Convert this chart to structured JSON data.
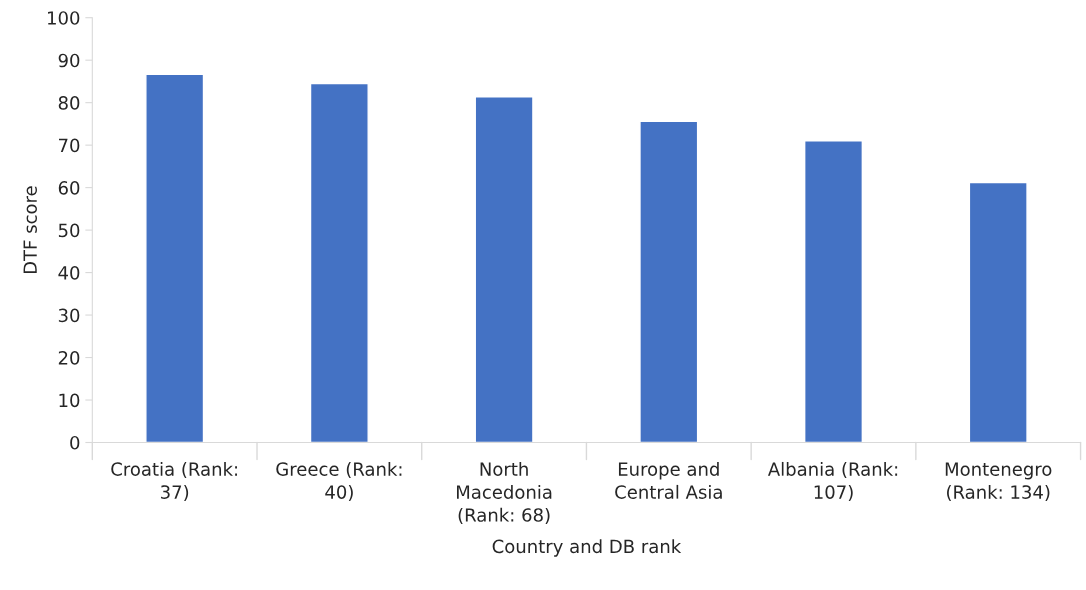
{
  "chart_data": {
    "type": "bar",
    "categories": [
      "Croatia (Rank: 37)",
      "Greece (Rank: 40)",
      "North Macedonia (Rank: 68)",
      "Europe and Central Asia",
      "Albania (Rank: 107)",
      "Montenegro (Rank: 134)"
    ],
    "values": [
      86.7,
      84.5,
      81.4,
      75.6,
      71.0,
      61.2
    ],
    "color": "#4472c4",
    "xlabel": "Country and DB rank",
    "ylabel": "DTF score",
    "ylim": [
      0,
      100
    ],
    "yticks": [
      0,
      10,
      20,
      30,
      40,
      50,
      60,
      70,
      80,
      90,
      100
    ],
    "grid": false,
    "legend": false
  }
}
